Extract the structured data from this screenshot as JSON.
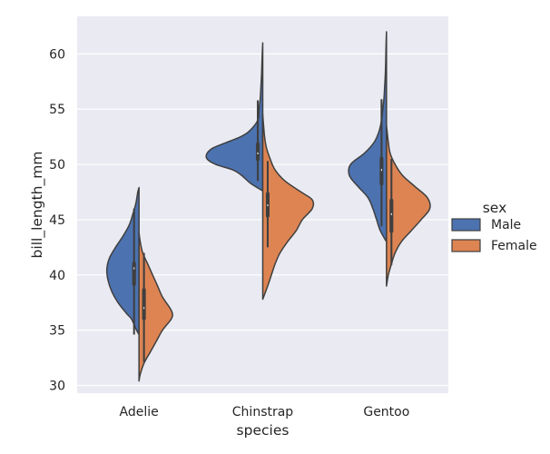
{
  "chart_data": {
    "type": "violin",
    "split": true,
    "xlabel": "species",
    "ylabel": "bill_length_mm",
    "ylim": [
      29.3,
      63.4
    ],
    "yticks": [
      30,
      35,
      40,
      45,
      50,
      55,
      60
    ],
    "categories": [
      "Adelie",
      "Chinstrap",
      "Gentoo"
    ],
    "grid": true,
    "legend": {
      "title": "sex",
      "placement": "right"
    },
    "series": [
      {
        "name": "Male",
        "side": "left",
        "color": "#4c72b0",
        "groups": [
          {
            "category": "Adelie",
            "min": 34.6,
            "q1": 39.0,
            "median": 40.6,
            "q3": 41.2,
            "max": 46.0,
            "box_width": 0.06,
            "whisker_width": 0.015,
            "kde_y": [
              34.6,
              35.0,
              36.0,
              36.5,
              37.5,
              38.5,
              39.5,
              40.5,
              41.5,
              42.5,
              43.5,
              44.5,
              45.5,
              46.5,
              47.5,
              47.9
            ],
            "kde_w": [
              0.0,
              0.02,
              0.06,
              0.1,
              0.17,
              0.22,
              0.25,
              0.26,
              0.24,
              0.19,
              0.13,
              0.08,
              0.05,
              0.025,
              0.01,
              0.0
            ]
          },
          {
            "category": "Chinstrap",
            "min": 48.5,
            "q1": 50.3,
            "median": 51.0,
            "q3": 52.0,
            "max": 55.8,
            "box_width": 0.06,
            "whisker_width": 0.015,
            "kde_y": [
              47.6,
              48.3,
              49.0,
              49.5,
              50.0,
              50.5,
              51.0,
              51.5,
              52.0,
              52.5,
              53.0,
              54.0,
              55.0,
              56.0,
              57.0,
              58.0,
              59.0,
              60.0,
              61.0
            ],
            "kde_w": [
              0.0,
              0.1,
              0.17,
              0.24,
              0.38,
              0.45,
              0.45,
              0.4,
              0.29,
              0.18,
              0.11,
              0.04,
              0.03,
              0.02,
              0.015,
              0.01,
              0.007,
              0.004,
              0.0
            ]
          },
          {
            "category": "Gentoo",
            "min": 44.4,
            "q1": 48.1,
            "median": 49.5,
            "q3": 50.7,
            "max": 55.9,
            "box_width": 0.06,
            "whisker_width": 0.015,
            "kde_y": [
              43.0,
              44.0,
              45.0,
              46.0,
              47.0,
              48.0,
              49.0,
              50.0,
              51.0,
              52.0,
              53.0,
              54.0,
              55.0,
              56.0,
              57.0,
              58.0,
              59.0,
              60.0,
              61.0,
              62.0
            ],
            "kde_w": [
              0.0,
              0.05,
              0.08,
              0.11,
              0.15,
              0.23,
              0.3,
              0.29,
              0.18,
              0.1,
              0.06,
              0.04,
              0.03,
              0.02,
              0.015,
              0.01,
              0.007,
              0.005,
              0.003,
              0.0
            ]
          }
        ]
      },
      {
        "name": "Female",
        "side": "right",
        "color": "#dd8452",
        "groups": [
          {
            "category": "Adelie",
            "min": 32.1,
            "q1": 35.9,
            "median": 37.0,
            "q3": 38.8,
            "max": 42.0,
            "box_width": 0.06,
            "whisker_width": 0.015,
            "kde_y": [
              30.4,
              31.0,
              32.0,
              33.0,
              34.0,
              35.0,
              36.0,
              36.5,
              37.0,
              38.0,
              39.0,
              40.0,
              41.0,
              42.0,
              43.0,
              43.8
            ],
            "kde_w": [
              0.0,
              0.01,
              0.04,
              0.09,
              0.14,
              0.19,
              0.26,
              0.27,
              0.25,
              0.19,
              0.15,
              0.11,
              0.07,
              0.03,
              0.01,
              0.0
            ]
          },
          {
            "category": "Chinstrap",
            "min": 42.5,
            "q1": 45.2,
            "median": 46.3,
            "q3": 47.5,
            "max": 50.3,
            "box_width": 0.06,
            "whisker_width": 0.015,
            "kde_y": [
              37.8,
              39.0,
              40.0,
              41.0,
              42.0,
              43.0,
              44.0,
              45.0,
              46.0,
              46.8,
              47.5,
              48.5,
              49.5,
              50.5,
              51.5,
              52.5,
              53.5,
              54.5
            ],
            "kde_w": [
              0.0,
              0.04,
              0.07,
              0.1,
              0.14,
              0.2,
              0.27,
              0.32,
              0.4,
              0.4,
              0.31,
              0.18,
              0.1,
              0.06,
              0.03,
              0.015,
              0.007,
              0.0
            ]
          },
          {
            "category": "Gentoo",
            "min": 40.9,
            "q1": 43.8,
            "median": 45.5,
            "q3": 46.9,
            "max": 50.5,
            "box_width": 0.06,
            "whisker_width": 0.015,
            "kde_y": [
              39.0,
              40.0,
              41.0,
              42.0,
              43.0,
              44.0,
              45.0,
              46.0,
              47.0,
              48.0,
              49.0,
              50.0,
              51.0,
              52.0,
              53.0,
              53.5
            ],
            "kde_w": [
              0.0,
              0.015,
              0.04,
              0.07,
              0.12,
              0.2,
              0.28,
              0.35,
              0.33,
              0.23,
              0.13,
              0.07,
              0.03,
              0.015,
              0.005,
              0.0
            ]
          }
        ]
      }
    ]
  },
  "legend": {
    "title": "sex",
    "items": [
      {
        "label": "Male",
        "color": "#4c72b0"
      },
      {
        "label": "Female",
        "color": "#dd8452"
      }
    ]
  },
  "colors": {
    "plot_background": "#eaeaf2",
    "grid": "#ffffff",
    "outline": "#3f3f3f",
    "median": "#ffffff"
  }
}
